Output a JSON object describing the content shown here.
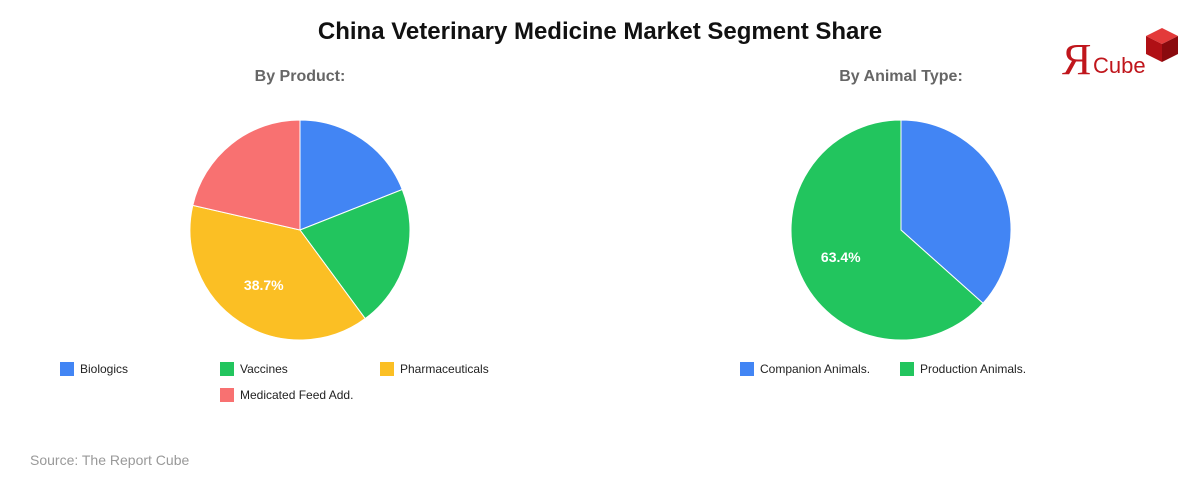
{
  "title": "China Veterinary Medicine Market Segment Share",
  "logo": {
    "mark": "Я",
    "text": "Cube"
  },
  "source": "Source: The Report Cube",
  "chart_data": [
    {
      "type": "pie",
      "title": "By Product:",
      "labels": [
        "Biologics",
        "Vaccines",
        "Pharmaceuticals",
        "Medicated Feed Add."
      ],
      "values": [
        19.0,
        20.9,
        38.7,
        21.4
      ],
      "colors": [
        "#4285f4",
        "#22c55e",
        "#fbbf24",
        "#f87171"
      ],
      "data_labels": [
        "",
        "",
        "38.7%",
        ""
      ],
      "legend": "bottom"
    },
    {
      "type": "pie",
      "title": "By Animal Type:",
      "labels": [
        "Companion Animals.",
        "Production Animals."
      ],
      "values": [
        36.6,
        63.4
      ],
      "colors": [
        "#4285f4",
        "#22c55e"
      ],
      "data_labels": [
        "",
        "63.4%"
      ],
      "legend": "bottom"
    }
  ]
}
